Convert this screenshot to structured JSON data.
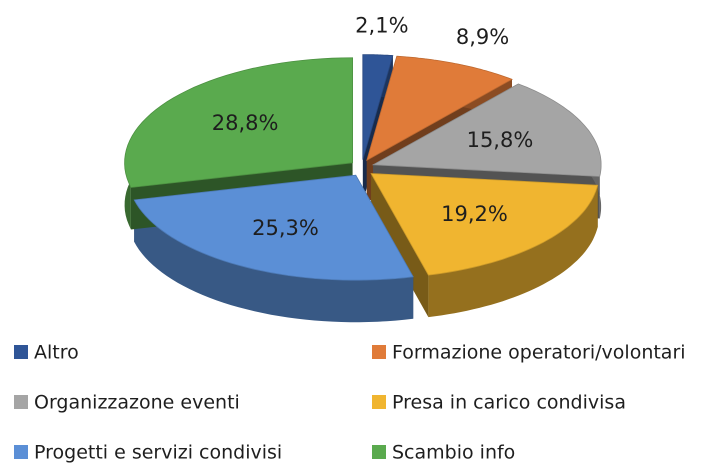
{
  "chart_data": {
    "type": "pie",
    "categories": [
      "Altro",
      "Formazione operatori/volontari",
      "Organizzazone eventi",
      "Presa in carico condivisa",
      "Progetti e servizi condivisi",
      "Scambio info"
    ],
    "values": [
      2.1,
      8.9,
      15.8,
      19.2,
      25.3,
      28.8
    ],
    "value_labels": [
      "2,1%",
      "8,9%",
      "15,8%",
      "19,2%",
      "25,3%",
      "28,8%"
    ],
    "colors": [
      "#2f5597",
      "#e07b39",
      "#a5a5a5",
      "#f0b530",
      "#5b8fd6",
      "#5aaa4e"
    ]
  }
}
